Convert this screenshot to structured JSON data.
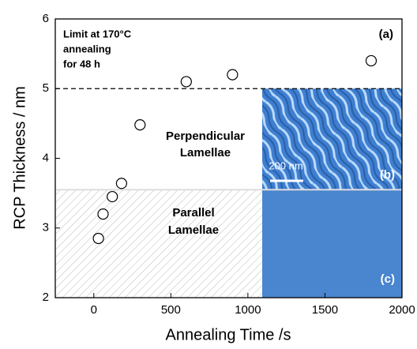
{
  "chart_data": {
    "type": "scatter",
    "x_label": "Annealing Time /s",
    "y_label": "RCP Thickness / nm",
    "x": [
      30,
      60,
      120,
      180,
      300,
      600,
      900,
      1800
    ],
    "values": [
      2.85,
      3.2,
      3.45,
      3.64,
      4.48,
      5.1,
      5.2,
      5.4
    ],
    "xlim": [
      -250,
      2000
    ],
    "ylim": [
      2,
      6
    ],
    "xticks": [
      0,
      500,
      1000,
      1500,
      2000
    ],
    "yticks": [
      2,
      3,
      4,
      5,
      6
    ],
    "limit_line": 5,
    "region_boundary": 3.55,
    "annotations": [
      "Limit at 170°C",
      "annealing",
      "for 48 h",
      "(a)",
      "Perpendicular",
      "Lamellae",
      "Parallel",
      "Lamellae",
      "200 nm",
      "(b)",
      "(c)"
    ]
  }
}
